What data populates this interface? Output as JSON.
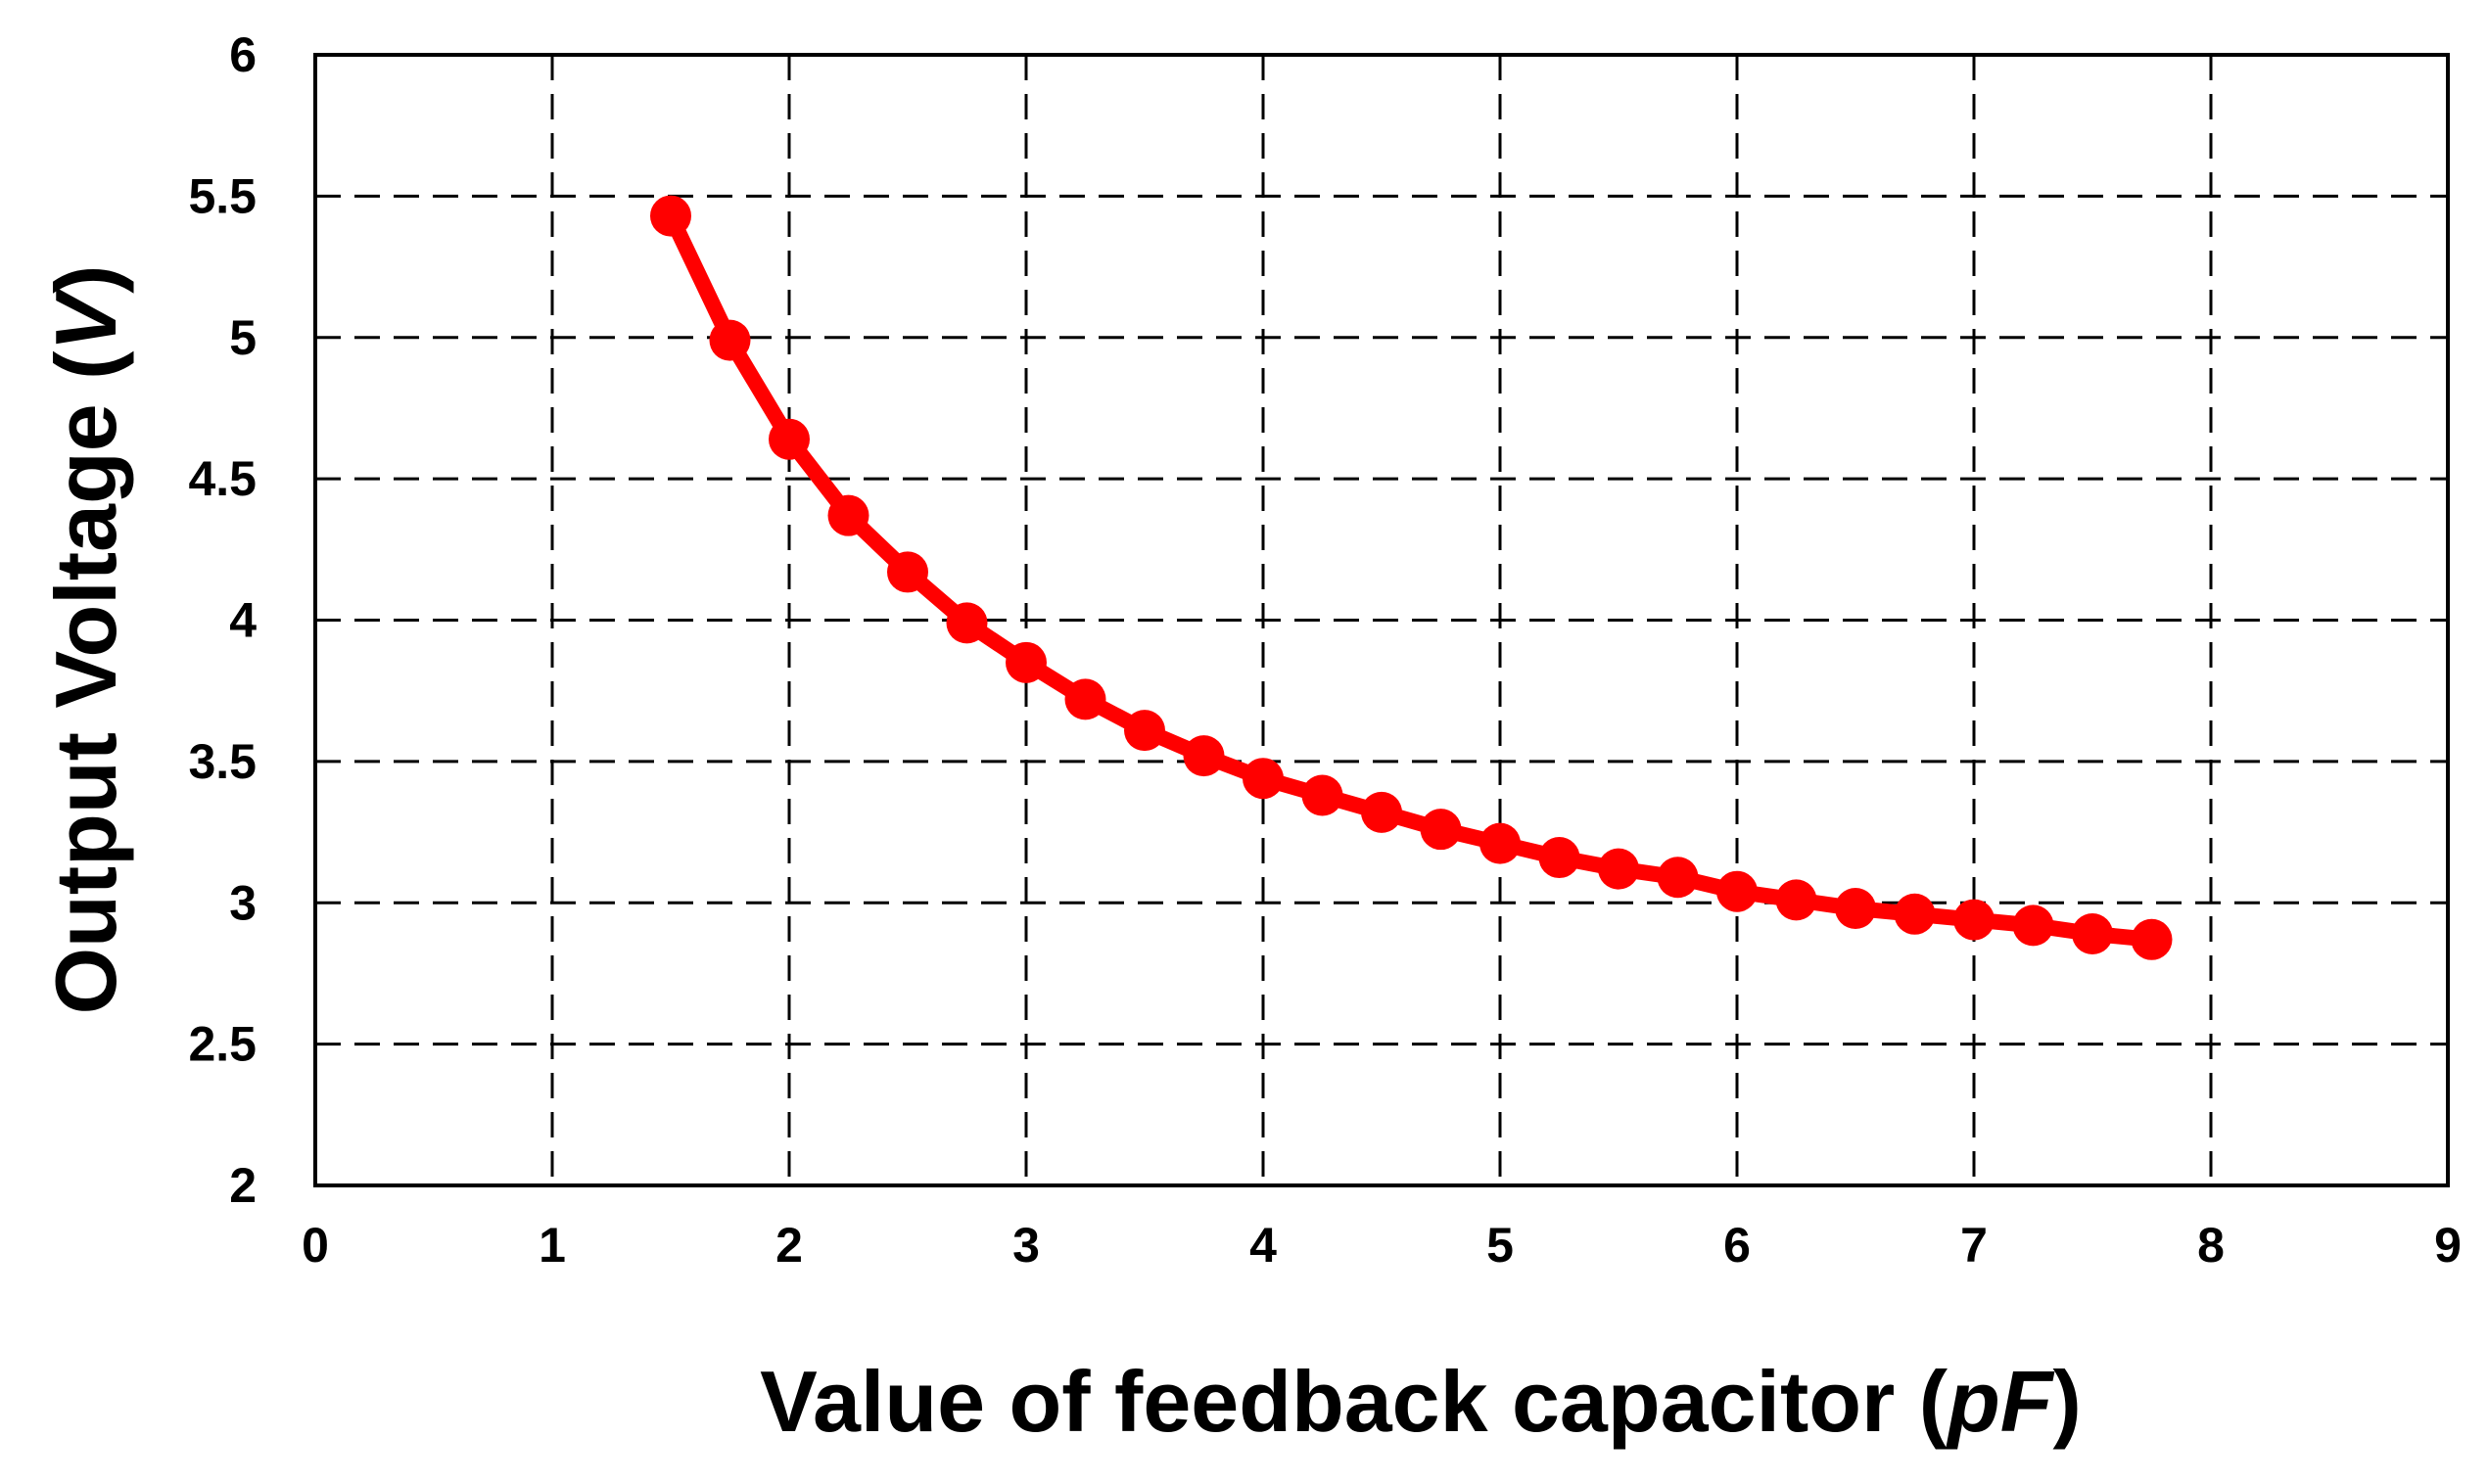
{
  "chart_data": {
    "type": "line",
    "title": "",
    "xlabel_parts": [
      {
        "text": "Value of feedback capacitor (",
        "italic": false
      },
      {
        "text": "pF",
        "italic": true
      },
      {
        "text": ")",
        "italic": false
      }
    ],
    "ylabel_parts": [
      {
        "text": "Output Voltage (",
        "italic": false
      },
      {
        "text": "V",
        "italic": true
      },
      {
        "text": ")",
        "italic": false
      }
    ],
    "xlim": [
      0,
      9
    ],
    "ylim": [
      2,
      6
    ],
    "x_ticks": [
      "0",
      "1",
      "2",
      "3",
      "4",
      "5",
      "6",
      "7",
      "8",
      "9"
    ],
    "y_ticks": [
      "2",
      "2.5",
      "3",
      "3.5",
      "4",
      "4.5",
      "5",
      "5.5",
      "6"
    ],
    "grid": true,
    "grid_style": "dashed",
    "legend": "none",
    "series": [
      {
        "color": "#ff0000",
        "marker": "circle",
        "x": [
          1.5,
          1.75,
          2.0,
          2.25,
          2.5,
          2.75,
          3.0,
          3.25,
          3.5,
          3.75,
          4.0,
          4.25,
          4.5,
          4.75,
          5.0,
          5.25,
          5.5,
          5.75,
          6.0,
          6.25,
          6.5,
          6.75,
          7.0,
          7.25,
          7.5,
          7.75
        ],
        "y": [
          5.43,
          4.99,
          4.64,
          4.37,
          4.17,
          3.99,
          3.85,
          3.72,
          3.61,
          3.52,
          3.44,
          3.38,
          3.32,
          3.26,
          3.21,
          3.16,
          3.12,
          3.09,
          3.04,
          3.01,
          2.98,
          2.96,
          2.94,
          2.92,
          2.89,
          2.87
        ]
      }
    ]
  }
}
